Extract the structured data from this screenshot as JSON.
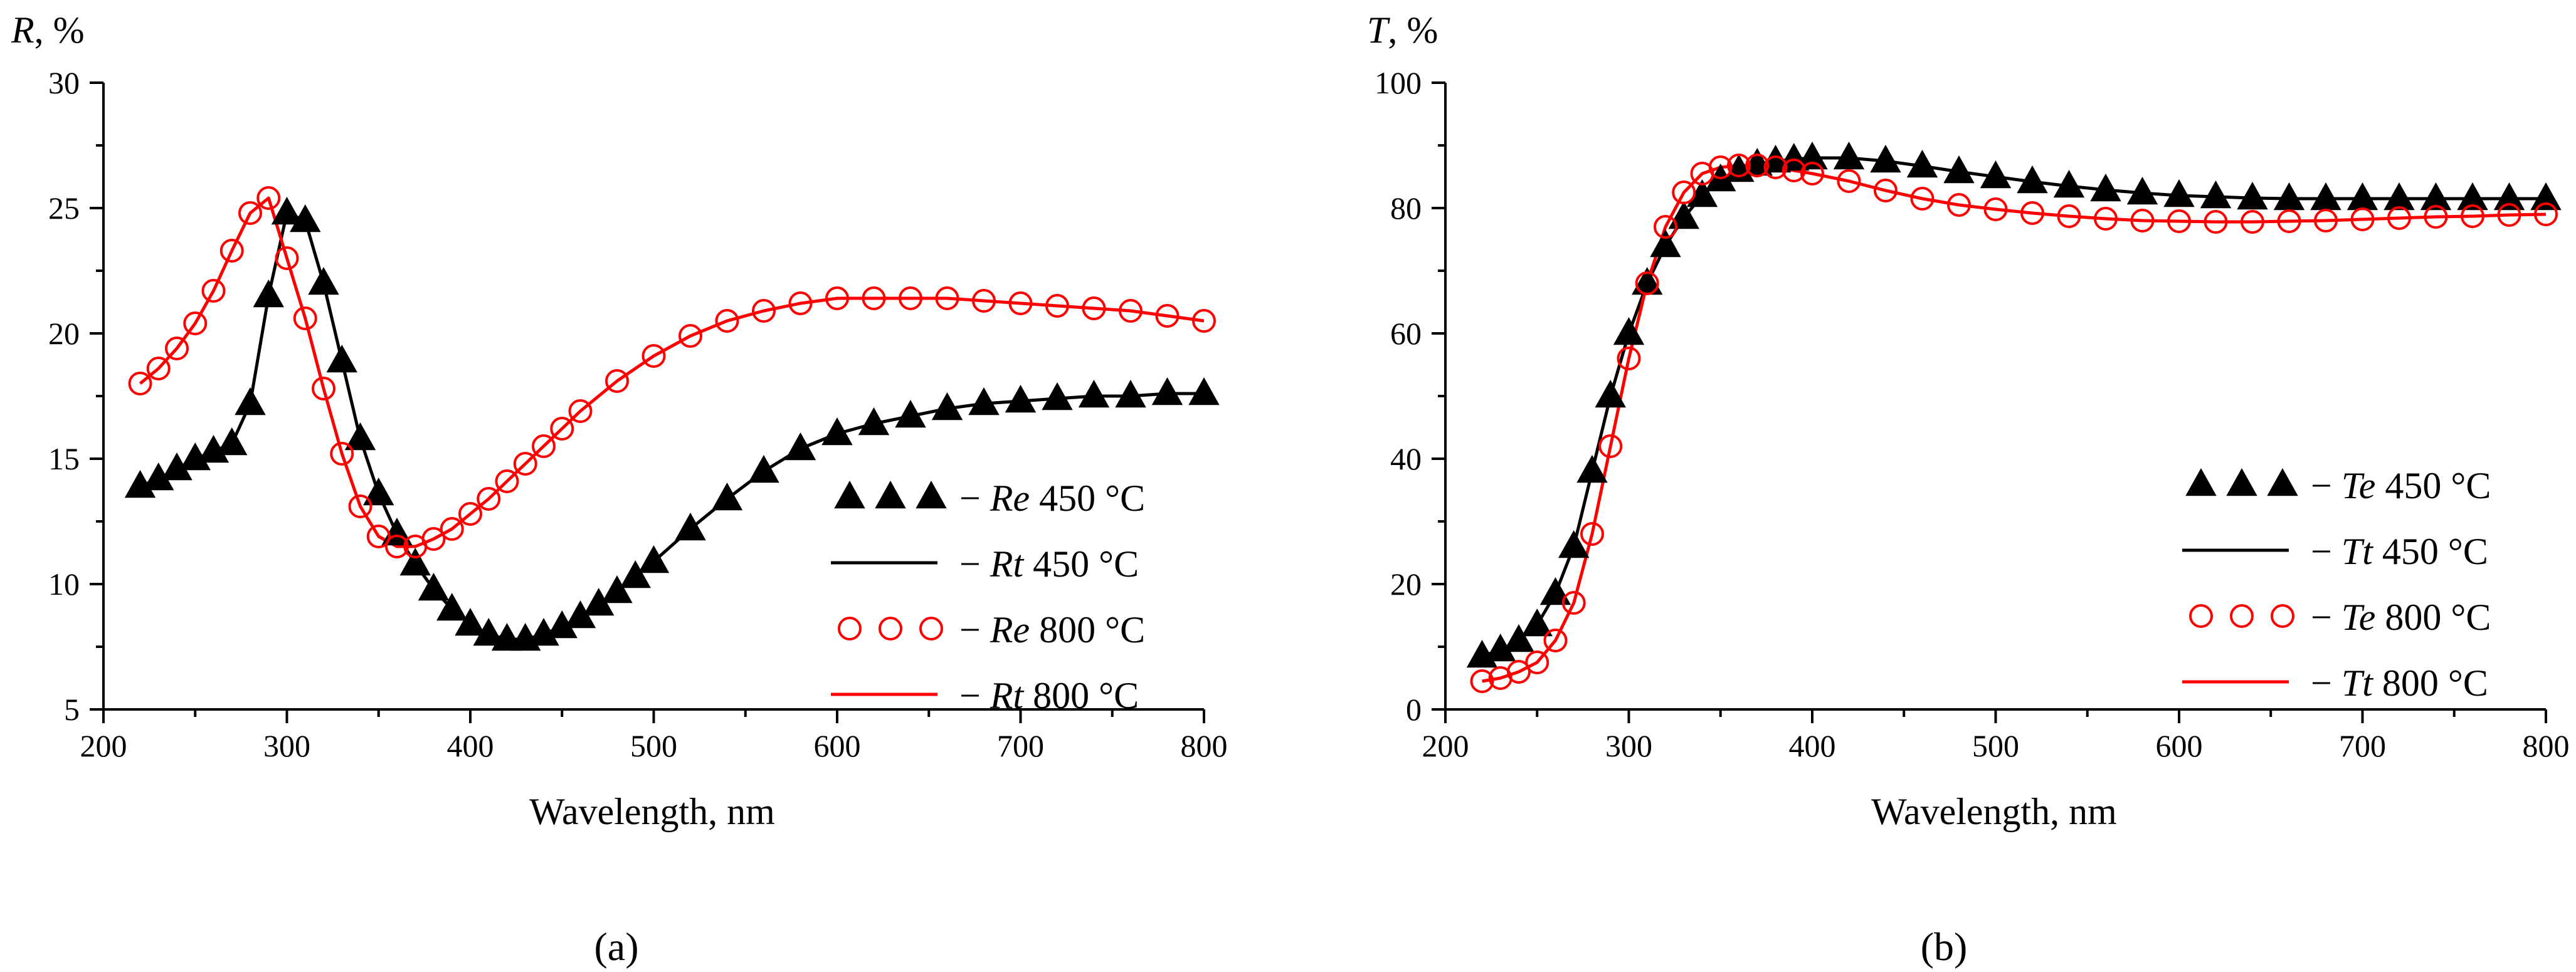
{
  "chart_data": [
    {
      "panel": "a",
      "type": "line",
      "y_axis_label": {
        "symbol": "R",
        "suffix": ", %"
      },
      "xlabel": "Wavelength, nm",
      "xlim": [
        200,
        800
      ],
      "ylim": [
        5,
        30
      ],
      "xticks": [
        200,
        300,
        400,
        500,
        600,
        700,
        800
      ],
      "yticks": [
        5,
        10,
        15,
        20,
        25,
        30
      ],
      "series": [
        {
          "name": "Re 450 °C",
          "italic": "Re",
          "rest": " 450 °C",
          "kind": "markers",
          "marker": "triangle",
          "color": "#000000",
          "x": [
            220,
            230,
            240,
            250,
            260,
            270,
            280,
            290,
            300,
            310,
            320,
            330,
            340,
            350,
            360,
            370,
            380,
            390,
            400,
            410,
            420,
            430,
            440,
            450,
            460,
            470,
            480,
            490,
            500,
            520,
            540,
            560,
            580,
            600,
            620,
            640,
            660,
            680,
            700,
            720,
            740,
            760,
            780,
            800
          ],
          "y": [
            13.9,
            14.2,
            14.6,
            15.0,
            15.3,
            15.6,
            17.2,
            21.5,
            24.8,
            24.5,
            22.0,
            18.9,
            15.8,
            13.6,
            12.0,
            10.8,
            9.8,
            9.0,
            8.4,
            8.0,
            7.8,
            7.8,
            8.0,
            8.3,
            8.7,
            9.2,
            9.7,
            10.3,
            10.9,
            12.2,
            13.4,
            14.5,
            15.4,
            16.0,
            16.4,
            16.7,
            17.0,
            17.2,
            17.3,
            17.4,
            17.5,
            17.5,
            17.6,
            17.6
          ]
        },
        {
          "name": "Rt 450 °C",
          "italic": "Rt",
          "rest": " 450 °C",
          "kind": "line",
          "color": "#000000",
          "x": [
            220,
            230,
            240,
            250,
            260,
            270,
            280,
            290,
            300,
            310,
            320,
            330,
            340,
            350,
            360,
            370,
            380,
            390,
            400,
            410,
            420,
            430,
            440,
            450,
            460,
            470,
            480,
            490,
            500,
            520,
            540,
            560,
            580,
            600,
            620,
            640,
            660,
            680,
            700,
            720,
            740,
            760,
            780,
            800
          ],
          "y": [
            13.9,
            14.2,
            14.6,
            15.0,
            15.3,
            15.6,
            17.2,
            21.5,
            24.8,
            24.5,
            22.0,
            18.9,
            15.8,
            13.6,
            12.0,
            10.8,
            9.8,
            9.0,
            8.4,
            8.0,
            7.8,
            7.8,
            8.0,
            8.3,
            8.7,
            9.2,
            9.7,
            10.3,
            10.9,
            12.2,
            13.4,
            14.5,
            15.4,
            16.0,
            16.4,
            16.7,
            17.0,
            17.2,
            17.3,
            17.4,
            17.5,
            17.5,
            17.6,
            17.6
          ]
        },
        {
          "name": "Re 800 °C",
          "italic": "Re",
          "rest": " 800 °C",
          "kind": "markers",
          "marker": "circle",
          "color": "#ff0000",
          "x": [
            220,
            230,
            240,
            250,
            260,
            270,
            280,
            290,
            300,
            310,
            320,
            330,
            340,
            350,
            360,
            370,
            380,
            390,
            400,
            410,
            420,
            430,
            440,
            450,
            460,
            480,
            500,
            520,
            540,
            560,
            580,
            600,
            620,
            640,
            660,
            680,
            700,
            720,
            740,
            760,
            780,
            800
          ],
          "y": [
            18.0,
            18.6,
            19.4,
            20.4,
            21.7,
            23.3,
            24.8,
            25.4,
            23.0,
            20.6,
            17.8,
            15.2,
            13.1,
            11.9,
            11.5,
            11.5,
            11.8,
            12.2,
            12.8,
            13.4,
            14.1,
            14.8,
            15.5,
            16.2,
            16.9,
            18.1,
            19.1,
            19.9,
            20.5,
            20.9,
            21.2,
            21.4,
            21.4,
            21.4,
            21.4,
            21.3,
            21.2,
            21.1,
            21.0,
            20.9,
            20.7,
            20.5
          ]
        },
        {
          "name": "Rt 800 °C",
          "italic": "Rt",
          "rest": " 800 °C",
          "kind": "line",
          "color": "#ff0000",
          "x": [
            220,
            230,
            240,
            250,
            260,
            270,
            280,
            290,
            300,
            310,
            320,
            330,
            340,
            350,
            360,
            370,
            380,
            390,
            400,
            410,
            420,
            430,
            440,
            450,
            460,
            480,
            500,
            520,
            540,
            560,
            580,
            600,
            620,
            640,
            660,
            680,
            700,
            720,
            740,
            760,
            780,
            800
          ],
          "y": [
            18.0,
            18.6,
            19.4,
            20.4,
            21.7,
            23.3,
            24.8,
            25.4,
            23.0,
            20.6,
            17.8,
            15.2,
            13.1,
            11.9,
            11.5,
            11.5,
            11.8,
            12.2,
            12.8,
            13.4,
            14.1,
            14.8,
            15.5,
            16.2,
            16.9,
            18.1,
            19.1,
            19.9,
            20.5,
            20.9,
            21.2,
            21.4,
            21.4,
            21.4,
            21.4,
            21.3,
            21.2,
            21.1,
            21.0,
            20.9,
            20.7,
            20.5
          ]
        }
      ],
      "legend_position": "lower-right",
      "caption": "(a)"
    },
    {
      "panel": "b",
      "type": "line",
      "y_axis_label": {
        "symbol": "T",
        "suffix": ", %"
      },
      "xlabel": "Wavelength, nm",
      "xlim": [
        200,
        800
      ],
      "ylim": [
        0,
        100
      ],
      "xticks": [
        200,
        300,
        400,
        500,
        600,
        700,
        800
      ],
      "yticks": [
        0,
        20,
        40,
        60,
        80,
        100
      ],
      "series": [
        {
          "name": "Te 450 °C",
          "italic": "Te",
          "rest": " 450 °C",
          "kind": "markers",
          "marker": "triangle",
          "color": "#000000",
          "x": [
            220,
            230,
            240,
            250,
            260,
            270,
            280,
            290,
            300,
            310,
            320,
            330,
            340,
            350,
            360,
            370,
            380,
            390,
            400,
            420,
            440,
            460,
            480,
            500,
            520,
            540,
            560,
            580,
            600,
            620,
            640,
            660,
            680,
            700,
            720,
            740,
            760,
            780,
            800
          ],
          "y": [
            8.5,
            9.5,
            11.0,
            13.5,
            18.5,
            26.0,
            38.0,
            50.0,
            60.0,
            68.0,
            74.0,
            78.5,
            82.0,
            84.5,
            86.0,
            87.0,
            87.5,
            87.8,
            88.0,
            88.0,
            87.5,
            86.7,
            85.8,
            85.0,
            84.2,
            83.5,
            82.9,
            82.4,
            82.0,
            81.8,
            81.6,
            81.5,
            81.5,
            81.5,
            81.5,
            81.5,
            81.5,
            81.5,
            81.5
          ]
        },
        {
          "name": "Tt 450 °C",
          "italic": "Tt",
          "rest": " 450 °C",
          "kind": "line",
          "color": "#000000",
          "x": [
            220,
            230,
            240,
            250,
            260,
            270,
            280,
            290,
            300,
            310,
            320,
            330,
            340,
            350,
            360,
            370,
            380,
            390,
            400,
            420,
            440,
            460,
            480,
            500,
            520,
            540,
            560,
            580,
            600,
            620,
            640,
            660,
            680,
            700,
            720,
            740,
            760,
            780,
            800
          ],
          "y": [
            8.5,
            9.5,
            11.0,
            13.5,
            18.5,
            26.0,
            38.0,
            50.0,
            60.0,
            68.0,
            74.0,
            78.5,
            82.0,
            84.5,
            86.0,
            87.0,
            87.5,
            87.8,
            88.0,
            88.0,
            87.5,
            86.7,
            85.8,
            85.0,
            84.2,
            83.5,
            82.9,
            82.4,
            82.0,
            81.8,
            81.6,
            81.5,
            81.5,
            81.5,
            81.5,
            81.5,
            81.5,
            81.5,
            81.5
          ]
        },
        {
          "name": "Te 800 °C",
          "italic": "Te",
          "rest": " 800 °C",
          "kind": "markers",
          "marker": "circle",
          "color": "#ff0000",
          "x": [
            220,
            230,
            240,
            250,
            260,
            270,
            280,
            290,
            300,
            310,
            320,
            330,
            340,
            350,
            360,
            370,
            380,
            390,
            400,
            420,
            440,
            460,
            480,
            500,
            520,
            540,
            560,
            580,
            600,
            620,
            640,
            660,
            680,
            700,
            720,
            740,
            760,
            780,
            800
          ],
          "y": [
            4.5,
            5.0,
            6.0,
            7.5,
            11.0,
            17.0,
            28.0,
            42.0,
            56.0,
            68.0,
            77.0,
            82.5,
            85.5,
            86.5,
            86.8,
            86.8,
            86.5,
            86.0,
            85.5,
            84.3,
            82.8,
            81.5,
            80.5,
            79.8,
            79.2,
            78.7,
            78.3,
            78.0,
            77.9,
            77.8,
            77.8,
            77.9,
            78.0,
            78.2,
            78.4,
            78.6,
            78.7,
            78.9,
            79.0
          ]
        },
        {
          "name": "Tt 800 °C",
          "italic": "Tt",
          "rest": " 800 °C",
          "kind": "line",
          "color": "#ff0000",
          "x": [
            220,
            230,
            240,
            250,
            260,
            270,
            280,
            290,
            300,
            310,
            320,
            330,
            340,
            350,
            360,
            370,
            380,
            390,
            400,
            420,
            440,
            460,
            480,
            500,
            520,
            540,
            560,
            580,
            600,
            620,
            640,
            660,
            680,
            700,
            720,
            740,
            760,
            780,
            800
          ],
          "y": [
            4.5,
            5.0,
            6.0,
            7.5,
            11.0,
            17.0,
            28.0,
            42.0,
            56.0,
            68.0,
            77.0,
            82.5,
            85.5,
            86.5,
            86.8,
            86.8,
            86.5,
            86.0,
            85.5,
            84.3,
            82.8,
            81.5,
            80.5,
            79.8,
            79.2,
            78.7,
            78.3,
            78.0,
            77.9,
            77.8,
            77.8,
            77.9,
            78.0,
            78.2,
            78.4,
            78.6,
            78.7,
            78.9,
            79.0
          ]
        }
      ],
      "legend_position": "lower-right",
      "caption": "(b)"
    }
  ]
}
